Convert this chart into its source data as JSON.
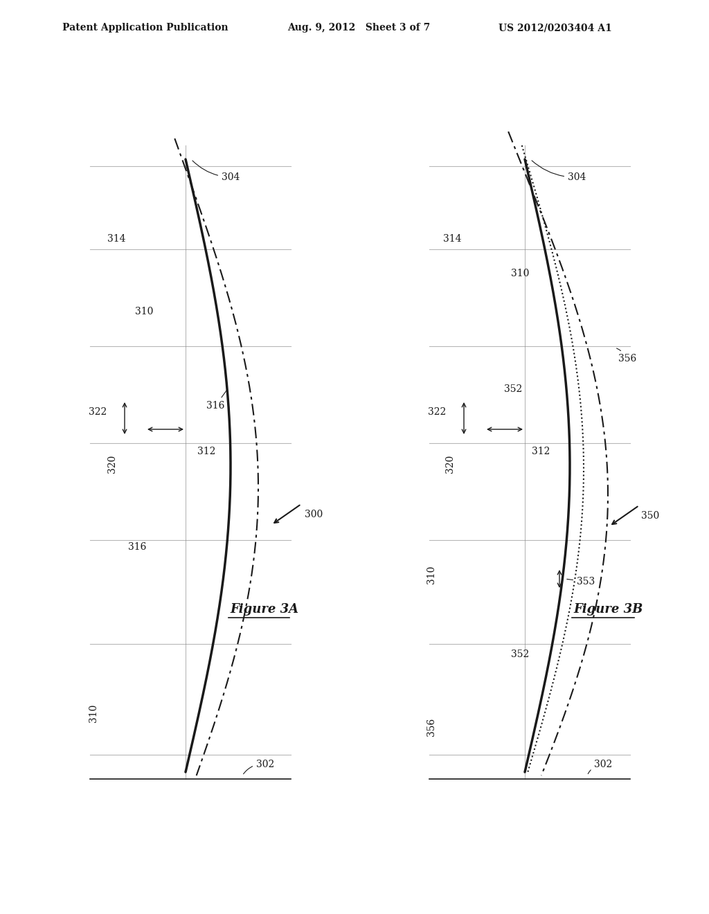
{
  "header_left": "Patent Application Publication",
  "header_center": "Aug. 9, 2012   Sheet 3 of 7",
  "header_right": "US 2012/0203404 A1",
  "fig3a_label": "Figure 3A",
  "fig3b_label": "Figure 3B",
  "bg_color": "#ffffff",
  "line_color": "#1a1a1a",
  "grid_color": "#888888"
}
